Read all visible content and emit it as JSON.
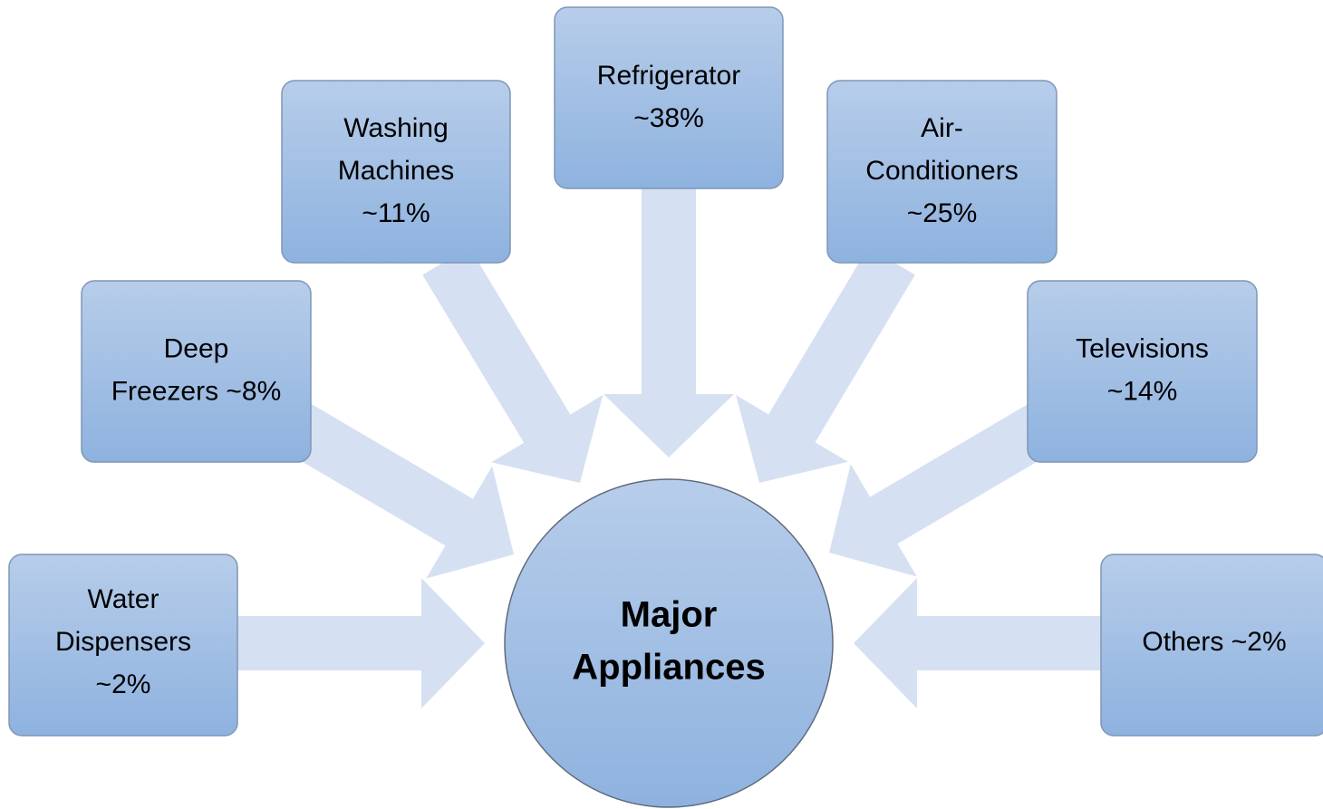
{
  "center": {
    "lines": [
      "Major",
      "Appliances"
    ]
  },
  "nodes": [
    {
      "lines": [
        "Water",
        "Dispensers",
        "~2%"
      ]
    },
    {
      "lines": [
        "Deep",
        "Freezers ~8%"
      ]
    },
    {
      "lines": [
        "Washing",
        "Machines",
        "~11%"
      ]
    },
    {
      "lines": [
        "Refrigerator",
        "~38%"
      ]
    },
    {
      "lines": [
        "Air-",
        "Conditioners",
        "~25%"
      ]
    },
    {
      "lines": [
        "Televisions",
        "~14%"
      ]
    },
    {
      "lines": [
        "Others ~2%"
      ]
    }
  ]
}
